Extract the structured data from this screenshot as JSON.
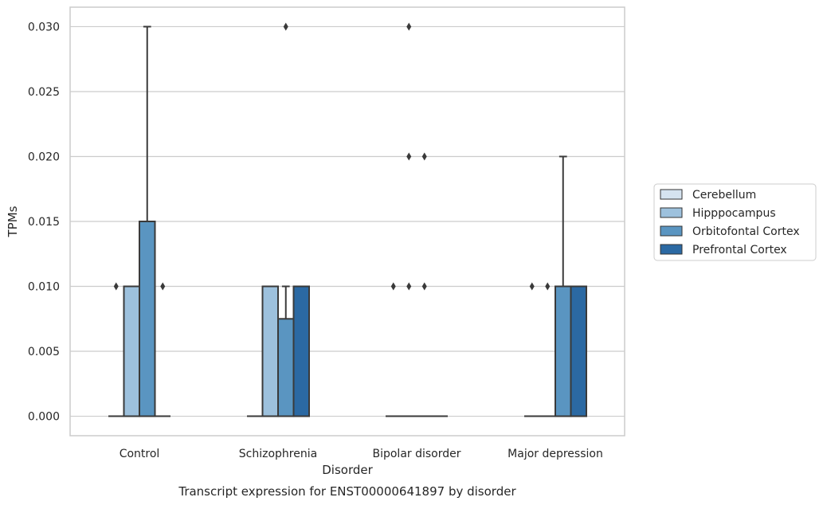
{
  "chart_data": {
    "type": "box",
    "title": "Transcript expression for ENST00000641897 by disorder",
    "xlabel": "Disorder",
    "ylabel": "TPMs",
    "ylim": [
      -0.0015,
      0.0315
    ],
    "yticks": [
      "0.000",
      "0.005",
      "0.010",
      "0.015",
      "0.020",
      "0.025",
      "0.030"
    ],
    "grid": "horizontal",
    "legend_position": "right",
    "categories": [
      "Control",
      "Schizophrenia",
      "Bipolar disorder",
      "Major depression"
    ],
    "series": [
      {
        "name": "Cerebellum",
        "color": "#d5e3f0",
        "boxes": [
          {
            "q1": 0,
            "median": 0,
            "q3": 0,
            "whisker_low": 0,
            "whisker_high": 0,
            "outliers": [
              0.01
            ]
          },
          {
            "q1": 0,
            "median": 0,
            "q3": 0,
            "whisker_low": 0,
            "whisker_high": 0,
            "outliers": []
          },
          {
            "q1": 0,
            "median": 0,
            "q3": 0,
            "whisker_low": 0,
            "whisker_high": 0,
            "outliers": [
              0.01
            ]
          },
          {
            "q1": 0,
            "median": 0,
            "q3": 0,
            "whisker_low": 0,
            "whisker_high": 0,
            "outliers": [
              0.01
            ]
          }
        ]
      },
      {
        "name": "Hipppocampus",
        "color": "#9dc1dd",
        "boxes": [
          {
            "q1": 0,
            "median": 0,
            "q3": 0.01,
            "whisker_low": 0,
            "whisker_high": 0.01,
            "outliers": []
          },
          {
            "q1": 0,
            "median": 0,
            "q3": 0.01,
            "whisker_low": 0,
            "whisker_high": 0.01,
            "outliers": []
          },
          {
            "q1": 0,
            "median": 0,
            "q3": 0,
            "whisker_low": 0,
            "whisker_high": 0,
            "outliers": [
              0.01,
              0.02,
              0.03
            ]
          },
          {
            "q1": 0,
            "median": 0,
            "q3": 0,
            "whisker_low": 0,
            "whisker_high": 0,
            "outliers": [
              0.01
            ]
          }
        ]
      },
      {
        "name": "Orbitofontal Cortex",
        "color": "#5a95c1",
        "boxes": [
          {
            "q1": 0,
            "median": 0,
            "q3": 0.015,
            "whisker_low": 0,
            "whisker_high": 0.03,
            "outliers": []
          },
          {
            "q1": 0,
            "median": 0,
            "q3": 0.0075,
            "whisker_low": 0,
            "whisker_high": 0.01,
            "outliers": [
              0.03
            ]
          },
          {
            "q1": 0,
            "median": 0,
            "q3": 0,
            "whisker_low": 0,
            "whisker_high": 0,
            "outliers": [
              0.01,
              0.02
            ]
          },
          {
            "q1": 0,
            "median": 0,
            "q3": 0.01,
            "whisker_low": 0,
            "whisker_high": 0.02,
            "outliers": []
          }
        ]
      },
      {
        "name": "Prefrontal Cortex",
        "color": "#2b69a3",
        "boxes": [
          {
            "q1": 0,
            "median": 0,
            "q3": 0,
            "whisker_low": 0,
            "whisker_high": 0,
            "outliers": [
              0.01
            ]
          },
          {
            "q1": 0,
            "median": 0,
            "q3": 0.01,
            "whisker_low": 0,
            "whisker_high": 0.01,
            "outliers": []
          },
          {
            "q1": 0,
            "median": 0,
            "q3": 0,
            "whisker_low": 0,
            "whisker_high": 0,
            "outliers": []
          },
          {
            "q1": 0,
            "median": 0,
            "q3": 0.01,
            "whisker_low": 0,
            "whisker_high": 0.01,
            "outliers": []
          }
        ]
      }
    ]
  }
}
